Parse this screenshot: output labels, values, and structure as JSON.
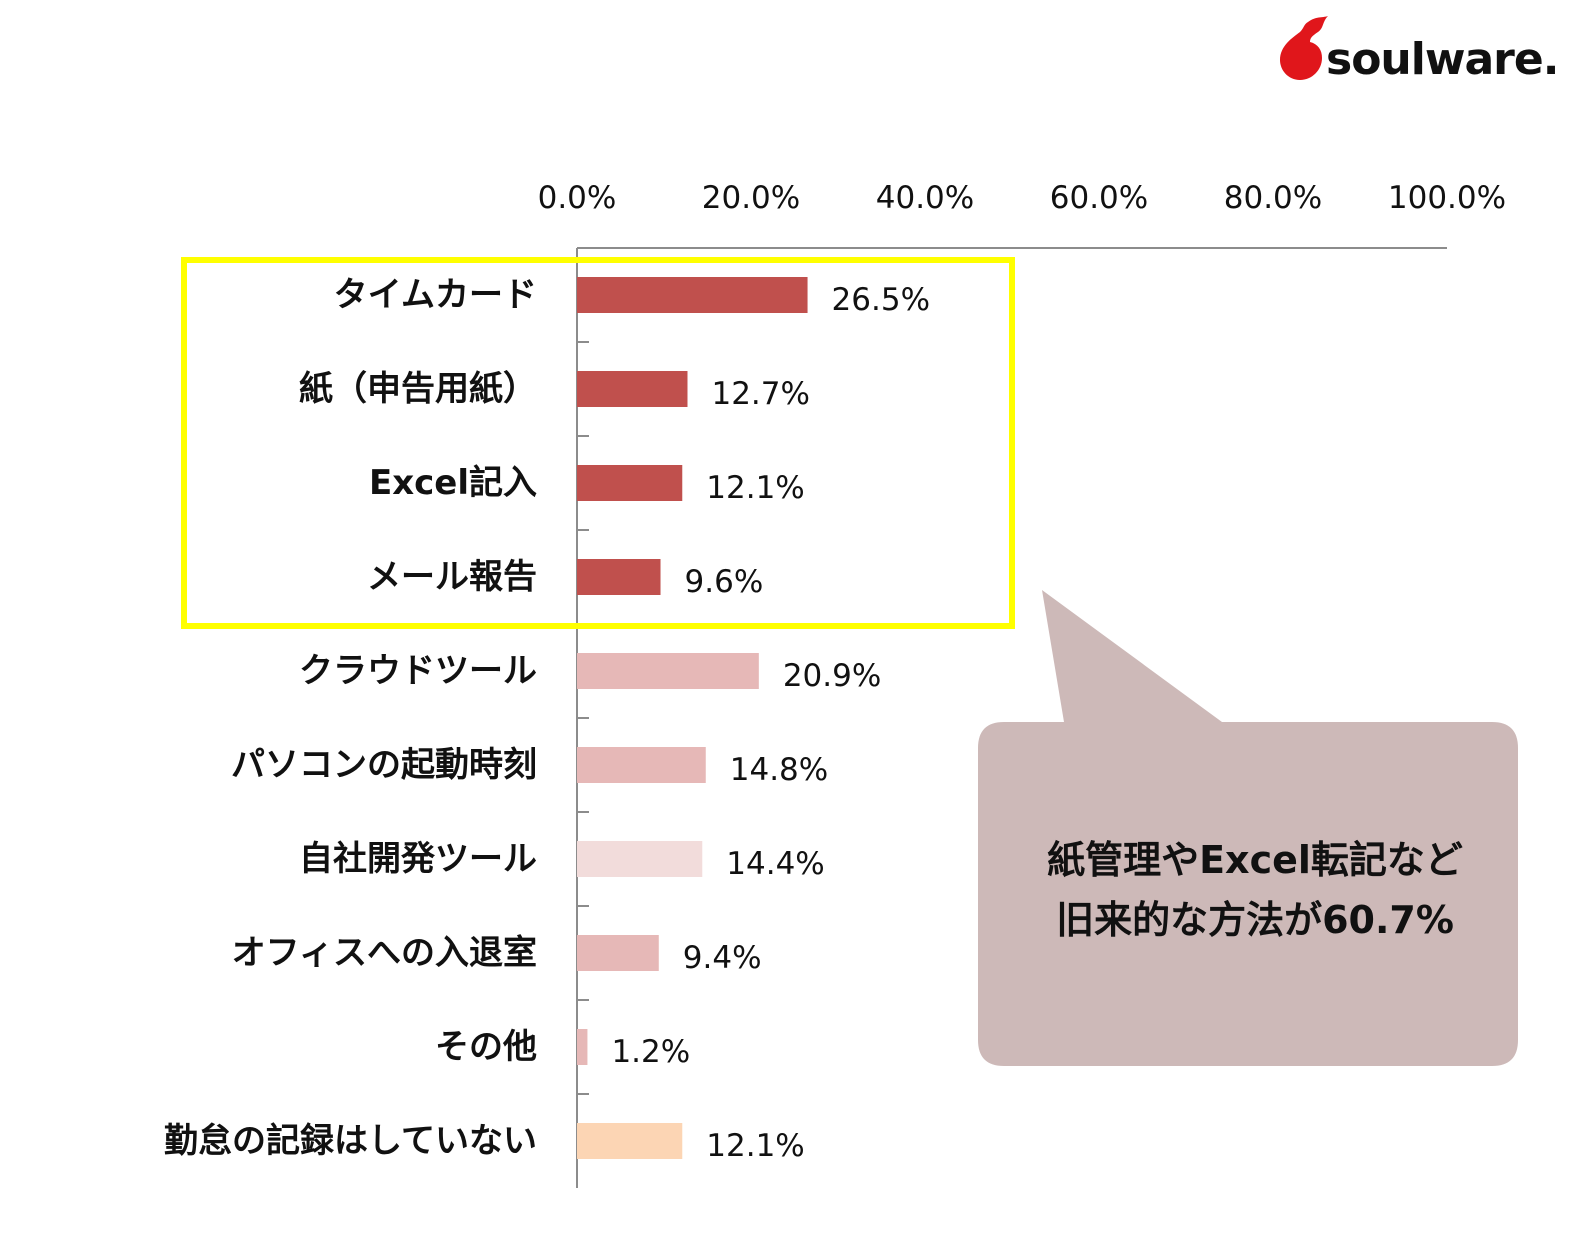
{
  "brand": {
    "name": "soulware.",
    "accent_color": "#e0161b"
  },
  "chart_data": {
    "type": "bar",
    "orientation": "horizontal",
    "title": "",
    "xlabel": "",
    "ylabel": "",
    "xlim": [
      0,
      100
    ],
    "x_ticks": [
      "0.0%",
      "20.0%",
      "40.0%",
      "60.0%",
      "80.0%",
      "100.0%"
    ],
    "x_axis_position": "top",
    "grid": false,
    "categories": [
      "タイムカード",
      "紙（申告用紙）",
      "Excel記入",
      "メール報告",
      "クラウドツール",
      "パソコンの起動時刻",
      "自社開発ツール",
      "オフィスへの入退室",
      "その他",
      "勤怠の記録はしていない"
    ],
    "values": [
      26.5,
      12.7,
      12.1,
      9.6,
      20.9,
      14.8,
      14.4,
      9.4,
      1.2,
      12.1
    ],
    "value_labels": [
      "26.5%",
      "12.7%",
      "12.1%",
      "9.6%",
      "20.9%",
      "14.8%",
      "14.4%",
      "9.4%",
      "1.2%",
      "12.1%"
    ],
    "bar_colors": [
      "#c0504d",
      "#c0504d",
      "#c0504d",
      "#c0504d",
      "#e6b8b7",
      "#e6b8b7",
      "#f2dcdb",
      "#e6b8b7",
      "#e6b8b7",
      "#fcd5b4"
    ],
    "highlight": {
      "from_index": 0,
      "to_index": 3,
      "border_color": "#ffff00"
    }
  },
  "callout": {
    "lines": [
      "紙管理やExcel転記など",
      "旧来的な方法が60.7%"
    ],
    "background_color": "#cdb9b8"
  }
}
